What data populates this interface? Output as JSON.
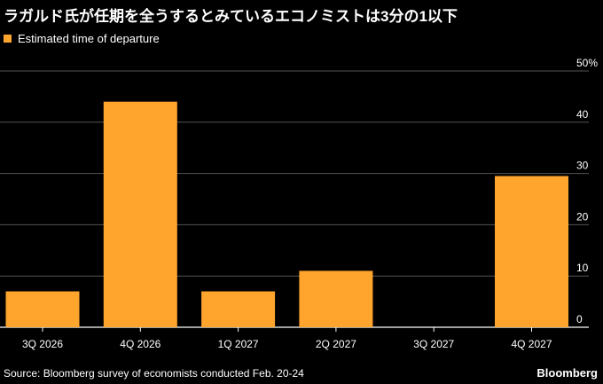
{
  "title": "ラガルド氏が任期を全うするとみているエコノミストは3分の1以下",
  "legend": {
    "label": "Estimated time of departure",
    "color": "#ffa52e"
  },
  "chart_data": {
    "type": "bar",
    "categories": [
      "3Q 2026",
      "4Q 2026",
      "1Q 2027",
      "2Q 2027",
      "3Q 2027",
      "4Q 2027"
    ],
    "series": [
      {
        "name": "Estimated time of departure",
        "values": [
          7,
          44,
          7,
          11,
          0,
          29.5
        ]
      }
    ],
    "ylim": [
      0,
      50
    ],
    "yticks": [
      0,
      10,
      20,
      30,
      40,
      50
    ],
    "ytick_labels": [
      "0",
      "10",
      "20",
      "30",
      "40",
      "50%"
    ],
    "grid": true,
    "y_axis_side": "right",
    "bar_color": "#ffa52e"
  },
  "footer": {
    "source": "Source: Bloomberg survey of economists conducted Feb. 20-24",
    "brand": "Bloomberg"
  }
}
